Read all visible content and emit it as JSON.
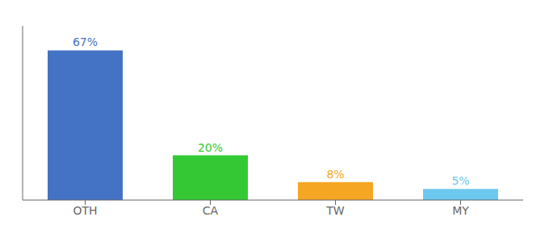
{
  "chart_data": {
    "type": "bar",
    "categories": [
      "OTH",
      "CA",
      "TW",
      "MY"
    ],
    "values": [
      67,
      20,
      8,
      5
    ],
    "value_labels": [
      "67%",
      "20%",
      "8%",
      "5%"
    ],
    "colors": [
      "#4472c4",
      "#34c934",
      "#f5a623",
      "#6dc8f0"
    ],
    "ylim": [
      0,
      78
    ],
    "data_labels": true,
    "tick_labels": "x",
    "grid": false
  }
}
